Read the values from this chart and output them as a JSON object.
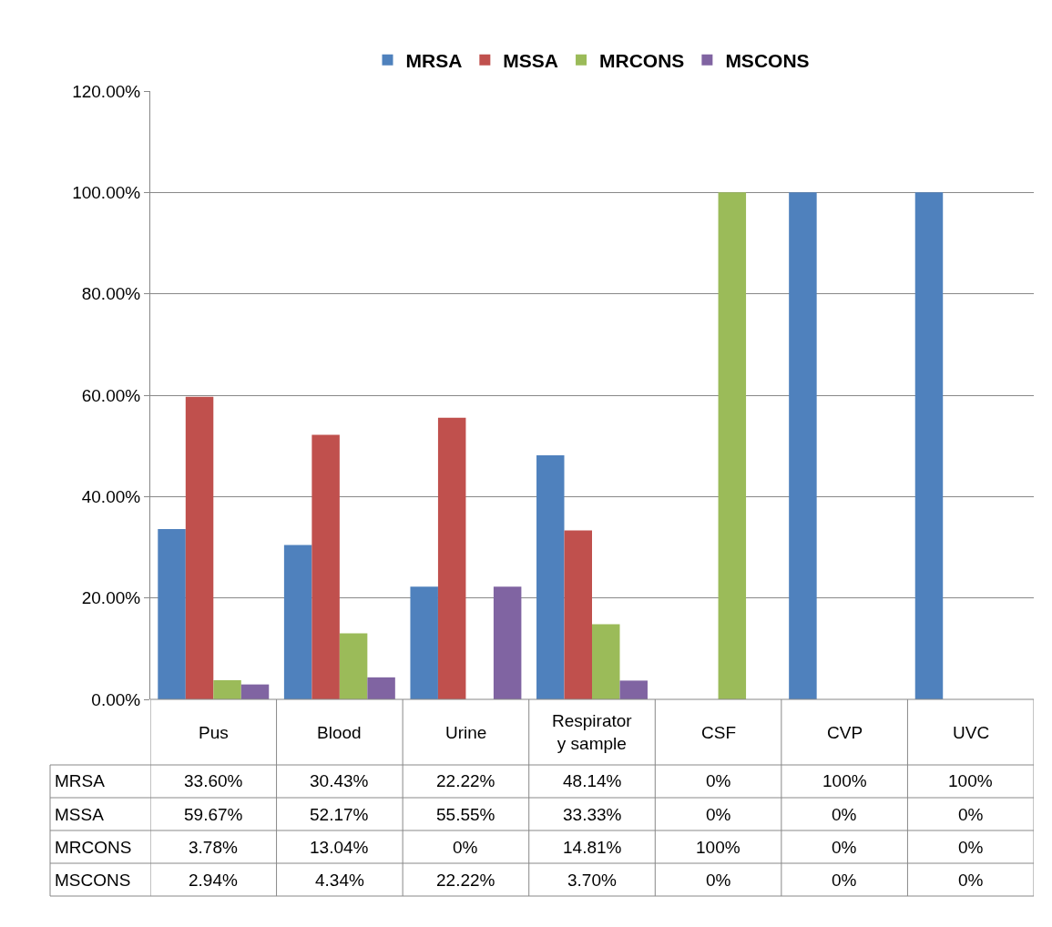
{
  "chart_data": {
    "type": "bar",
    "categories": [
      "Pus",
      "Blood",
      "Urine",
      "Respiratory sample",
      "CSF",
      "CVP",
      "UVC"
    ],
    "series": [
      {
        "name": "MRSA",
        "color": "#4f81bd",
        "values": [
          33.6,
          30.43,
          22.22,
          48.14,
          0,
          100,
          100
        ],
        "value_labels": [
          "33.60%",
          "30.43%",
          "22.22%",
          "48.14%",
          "0%",
          "100%",
          "100%"
        ]
      },
      {
        "name": "MSSA",
        "color": "#c0504d",
        "values": [
          59.67,
          52.17,
          55.55,
          33.33,
          0,
          0,
          0
        ],
        "value_labels": [
          "59.67%",
          "52.17%",
          "55.55%",
          "33.33%",
          "0%",
          "0%",
          "0%"
        ]
      },
      {
        "name": "MRCONS",
        "color": "#9bbb59",
        "values": [
          3.78,
          13.04,
          0,
          14.81,
          100,
          0,
          0
        ],
        "value_labels": [
          "3.78%",
          "13.04%",
          "0%",
          "14.81%",
          "100%",
          "0%",
          "0%"
        ]
      },
      {
        "name": "MSCONS",
        "color": "#8064a2",
        "values": [
          2.94,
          4.34,
          22.22,
          3.7,
          0,
          0,
          0
        ],
        "value_labels": [
          "2.94%",
          "4.34%",
          "22.22%",
          "3.70%",
          "0%",
          "0%",
          "0%"
        ]
      }
    ],
    "ylim": [
      0,
      120
    ],
    "yticks": [
      {
        "value": 0,
        "label": "0.00%"
      },
      {
        "value": 20,
        "label": "20.00%"
      },
      {
        "value": 40,
        "label": "40.00%"
      },
      {
        "value": 60,
        "label": "60.00%"
      },
      {
        "value": 80,
        "label": "80.00%"
      },
      {
        "value": 100,
        "label": "100.00%"
      },
      {
        "value": 120,
        "label": "120.00%"
      }
    ],
    "grid": "y",
    "legend": "top"
  }
}
